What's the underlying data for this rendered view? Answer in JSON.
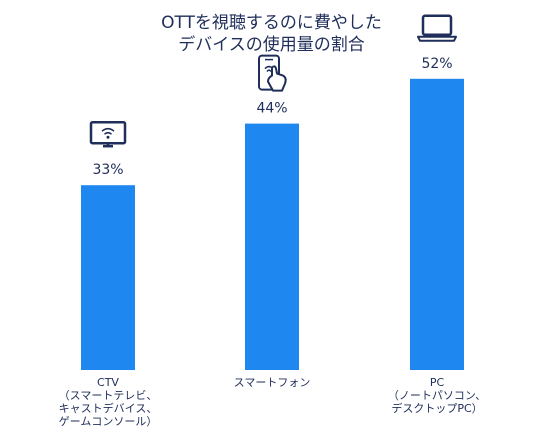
{
  "chart_data": {
    "type": "bar",
    "title_lines": [
      "OTTを視聴するのに費やした",
      "デバイスの使用量の割合"
    ],
    "categories": [
      {
        "lines": [
          "CTV",
          "（スマートテレビ、",
          "キャストデバイス、",
          "ゲームコンソール）"
        ],
        "icon": "tv-icon"
      },
      {
        "lines": [
          "スマートフォン"
        ],
        "icon": "smartphone-touch-icon"
      },
      {
        "lines": [
          "PC",
          "（ノートパソコン、",
          "デスクトップPC）"
        ],
        "icon": "laptop-icon"
      }
    ],
    "values": [
      33,
      44,
      52
    ],
    "value_labels": [
      "33%",
      "44%",
      "52%"
    ],
    "unit": "%",
    "ylim": [
      0,
      60
    ],
    "grid": false,
    "colors": {
      "bar": "#1e88f0",
      "text": "#1f2e5a",
      "icon": "#1f2e5a"
    }
  }
}
